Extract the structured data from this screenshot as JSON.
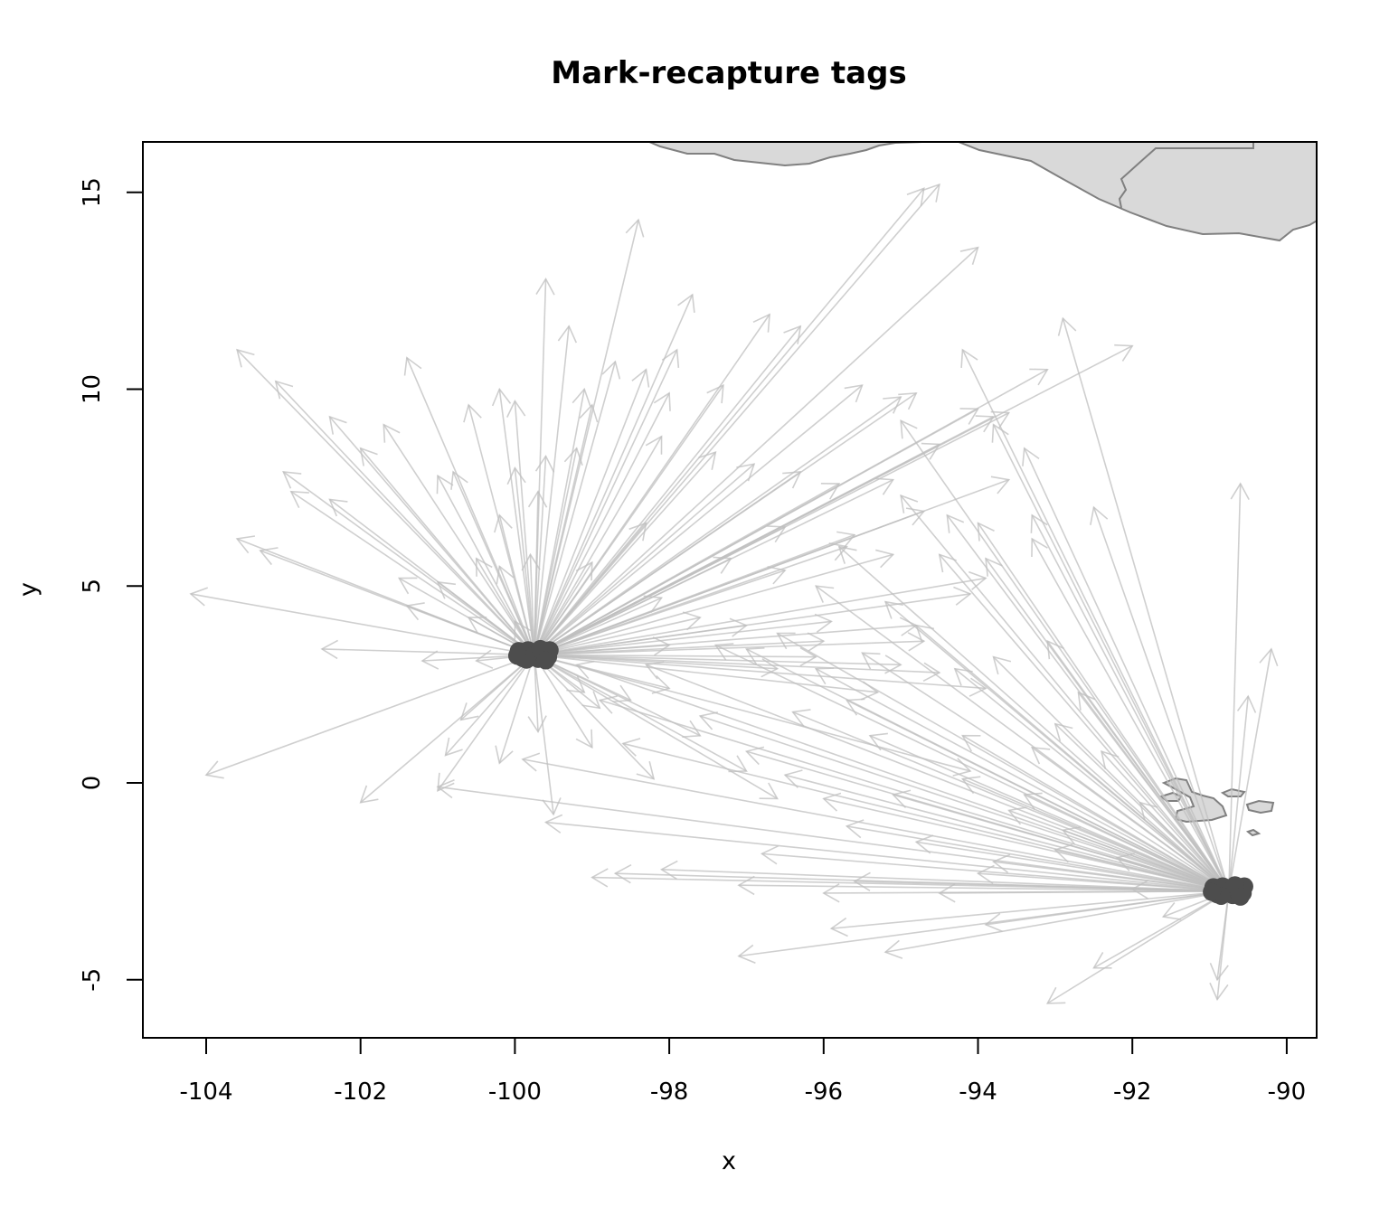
{
  "chart_data": {
    "type": "scatter",
    "title": "Mark-recapture tags",
    "xlabel": "x",
    "ylabel": "y",
    "xlim": [
      -104.8,
      -89.7
    ],
    "ylim": [
      -6.5,
      16.2
    ],
    "xticks": [
      -104,
      -102,
      -100,
      -98,
      -96,
      -94,
      -92,
      -90
    ],
    "xtick_labels": [
      "-104",
      "-102",
      "-100",
      "-98",
      "-96",
      "-94",
      "-92",
      "-90"
    ],
    "yticks": [
      -5,
      0,
      5,
      10,
      15
    ],
    "ytick_labels": [
      "-5",
      "0",
      "5",
      "10",
      "15"
    ],
    "grid": false,
    "legend": "none",
    "colors": {
      "arrow": "#bfbfbf",
      "point": "#4d4d4d",
      "land_fill": "#d9d9d9",
      "land_stroke": "#808080"
    },
    "release_sites": [
      {
        "x": -99.75,
        "y": 3.25
      },
      {
        "x": -90.75,
        "y": -2.75
      }
    ],
    "tags_site_1": [
      [
        -104.2,
        4.8
      ],
      [
        -103.6,
        11.0
      ],
      [
        -103.1,
        10.2
      ],
      [
        -103.0,
        7.9
      ],
      [
        -102.9,
        7.4
      ],
      [
        -103.6,
        6.2
      ],
      [
        -103.3,
        5.9
      ],
      [
        -102.5,
        3.4
      ],
      [
        -101.2,
        3.1
      ],
      [
        -104.0,
        0.2
      ],
      [
        -102.0,
        -0.5
      ],
      [
        -101.0,
        -0.2
      ],
      [
        -101.0,
        5.1
      ],
      [
        -100.2,
        10.0
      ],
      [
        -99.6,
        12.8
      ],
      [
        -99.3,
        11.6
      ],
      [
        -98.4,
        14.3
      ],
      [
        -97.7,
        12.4
      ],
      [
        -96.7,
        11.9
      ],
      [
        -96.3,
        11.6
      ],
      [
        -94.7,
        15.1
      ],
      [
        -94.5,
        15.2
      ],
      [
        -94.0,
        13.6
      ],
      [
        -95.5,
        10.1
      ],
      [
        -95.0,
        9.8
      ],
      [
        -94.0,
        9.5
      ],
      [
        -93.1,
        10.5
      ],
      [
        -92.0,
        11.1
      ],
      [
        -93.6,
        9.4
      ],
      [
        -97.9,
        11.0
      ],
      [
        -98.3,
        10.5
      ],
      [
        -99.1,
        10.0
      ],
      [
        -100.0,
        9.7
      ],
      [
        -101.4,
        10.8
      ],
      [
        -101.7,
        9.1
      ],
      [
        -102.0,
        8.5
      ],
      [
        -102.4,
        9.3
      ],
      [
        -101.0,
        7.8
      ],
      [
        -100.8,
        7.9
      ],
      [
        -102.4,
        7.2
      ],
      [
        -101.5,
        5.2
      ],
      [
        -100.2,
        5.5
      ],
      [
        -100.2,
        6.8
      ],
      [
        -99.7,
        7.4
      ],
      [
        -99.2,
        8.5
      ],
      [
        -99.0,
        9.6
      ],
      [
        -98.1,
        8.8
      ],
      [
        -97.4,
        8.4
      ],
      [
        -96.9,
        8.1
      ],
      [
        -96.3,
        7.9
      ],
      [
        -95.8,
        7.6
      ],
      [
        -95.1,
        7.7
      ],
      [
        -94.5,
        8.6
      ],
      [
        -93.6,
        7.7
      ],
      [
        -95.6,
        6.3
      ],
      [
        -94.7,
        6.9
      ],
      [
        -95.7,
        6.0
      ],
      [
        -96.5,
        6.5
      ],
      [
        -97.2,
        5.7
      ],
      [
        -96.5,
        5.4
      ],
      [
        -95.1,
        5.8
      ],
      [
        -94.1,
        4.8
      ],
      [
        -94.8,
        4.0
      ],
      [
        -95.9,
        4.1
      ],
      [
        -97.0,
        4.0
      ],
      [
        -98.0,
        3.5
      ],
      [
        -96.0,
        3.6
      ],
      [
        -95.0,
        3.0
      ],
      [
        -96.6,
        2.9
      ],
      [
        -98.0,
        2.4
      ],
      [
        -98.5,
        2.1
      ],
      [
        -98.9,
        1.9
      ],
      [
        -99.1,
        2.3
      ],
      [
        -97.6,
        1.2
      ],
      [
        -97.0,
        0.3
      ],
      [
        -96.6,
        -0.4
      ],
      [
        -98.2,
        0.1
      ],
      [
        -99.0,
        0.9
      ],
      [
        -99.5,
        -0.8
      ],
      [
        -99.7,
        1.3
      ],
      [
        -100.2,
        0.5
      ],
      [
        -100.7,
        1.6
      ],
      [
        -100.9,
        0.7
      ],
      [
        -100.5,
        3.1
      ],
      [
        -100.6,
        4.2
      ],
      [
        -101.4,
        4.5
      ],
      [
        -100.0,
        4.1
      ],
      [
        -99.8,
        5.8
      ],
      [
        -100.0,
        8.0
      ],
      [
        -100.6,
        9.6
      ],
      [
        -100.5,
        5.7
      ],
      [
        -99.0,
        5.6
      ],
      [
        -98.3,
        6.6
      ],
      [
        -98.1,
        4.7
      ],
      [
        -97.6,
        4.2
      ],
      [
        -96.1,
        3.2
      ],
      [
        -95.3,
        2.3
      ],
      [
        -94.5,
        2.8
      ],
      [
        -93.9,
        2.4
      ],
      [
        -94.1,
        0.3
      ],
      [
        -94.7,
        3.6
      ],
      [
        -93.9,
        5.2
      ],
      [
        -93.8,
        9.3
      ],
      [
        -94.8,
        9.9
      ],
      [
        -98.7,
        10.7
      ],
      [
        -98.0,
        9.9
      ],
      [
        -99.6,
        8.3
      ],
      [
        -97.3,
        10.1
      ]
    ],
    "tags_site_2": [
      [
        -90.9,
        -5.0
      ],
      [
        -90.9,
        -5.5
      ],
      [
        -93.1,
        -5.6
      ],
      [
        -92.5,
        -4.7
      ],
      [
        -91.6,
        -3.4
      ],
      [
        -90.2,
        3.4
      ],
      [
        -90.5,
        2.2
      ],
      [
        -90.6,
        7.6
      ],
      [
        -92.9,
        11.8
      ],
      [
        -93.4,
        8.5
      ],
      [
        -93.8,
        9.1
      ],
      [
        -92.5,
        7.0
      ],
      [
        -93.3,
        6.8
      ],
      [
        -94.2,
        11.0
      ],
      [
        -95.0,
        9.2
      ],
      [
        -94.4,
        6.8
      ],
      [
        -95.8,
        6.0
      ],
      [
        -94.0,
        6.6
      ],
      [
        -93.9,
        5.7
      ],
      [
        -93.3,
        6.2
      ],
      [
        -93.1,
        3.6
      ],
      [
        -93.8,
        3.2
      ],
      [
        -94.8,
        4.0
      ],
      [
        -95.5,
        3.3
      ],
      [
        -96.1,
        2.9
      ],
      [
        -97.0,
        3.4
      ],
      [
        -98.3,
        3.0
      ],
      [
        -99.2,
        3.0
      ],
      [
        -98.9,
        2.1
      ],
      [
        -97.6,
        1.7
      ],
      [
        -96.4,
        1.8
      ],
      [
        -95.4,
        1.2
      ],
      [
        -94.2,
        1.2
      ],
      [
        -93.3,
        0.9
      ],
      [
        -92.4,
        0.8
      ],
      [
        -97.0,
        0.8
      ],
      [
        -98.6,
        1.0
      ],
      [
        -99.9,
        0.6
      ],
      [
        -101.0,
        -0.1
      ],
      [
        -99.6,
        -1.0
      ],
      [
        -96.5,
        0.2
      ],
      [
        -95.1,
        -0.3
      ],
      [
        -94.2,
        0.1
      ],
      [
        -93.4,
        -0.3
      ],
      [
        -96.0,
        -0.4
      ],
      [
        -94.8,
        -1.5
      ],
      [
        -93.0,
        -1.7
      ],
      [
        -95.7,
        -1.1
      ],
      [
        -96.8,
        -1.8
      ],
      [
        -97.1,
        -2.6
      ],
      [
        -98.1,
        -2.2
      ],
      [
        -98.7,
        -2.3
      ],
      [
        -99.0,
        -2.4
      ],
      [
        -96.0,
        -2.8
      ],
      [
        -97.1,
        -4.4
      ],
      [
        -95.2,
        -4.3
      ],
      [
        -95.9,
        -3.7
      ],
      [
        -93.9,
        -3.6
      ],
      [
        -94.5,
        -2.8
      ],
      [
        -92.0,
        -2.7
      ],
      [
        -93.8,
        -2.0
      ],
      [
        -92.2,
        -1.9
      ],
      [
        -92.9,
        -1.2
      ],
      [
        -91.9,
        -0.5
      ],
      [
        -93.6,
        -0.7
      ],
      [
        -94.0,
        -2.3
      ],
      [
        -95.6,
        -2.5
      ],
      [
        -96.6,
        3.8
      ],
      [
        -95.2,
        4.6
      ],
      [
        -96.1,
        5.0
      ],
      [
        -97.4,
        3.5
      ],
      [
        -92.7,
        2.3
      ],
      [
        -93.0,
        1.5
      ],
      [
        -94.5,
        5.8
      ],
      [
        -95.0,
        7.3
      ],
      [
        -94.3,
        2.9
      ],
      [
        -95.7,
        2.1
      ]
    ]
  }
}
